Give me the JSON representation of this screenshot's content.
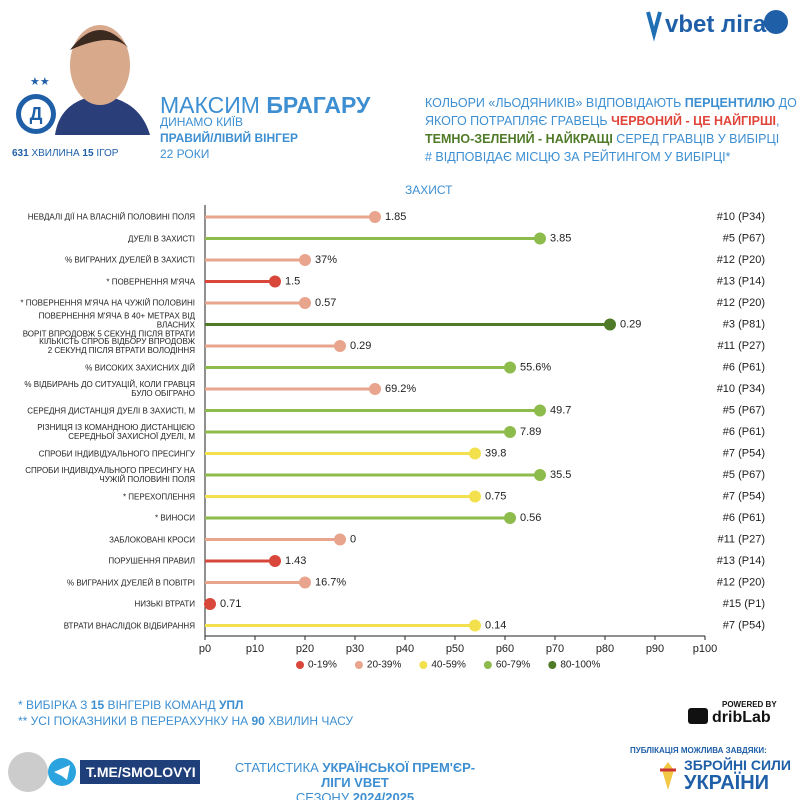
{
  "header": {
    "brand": "vbet ліга",
    "first_name": "МАКСИМ",
    "last_name": "БРАГАРУ",
    "club": "ДИНАМО КИЇВ",
    "position": "ПРАВИЙ/ЛІВИЙ ВІНГЕР",
    "age": "22 РОКИ",
    "minutes": [
      {
        "text": "631",
        "style": "b"
      },
      {
        "text": " ХВИЛИНА "
      },
      {
        "text": "15",
        "style": "b"
      },
      {
        "text": " ІГОР"
      }
    ],
    "note": [
      [
        {
          "text": "КОЛЬОРИ «ЛЬОДЯНИКІВ» ВІДПОВІДАЮТЬ "
        },
        {
          "text": "ПЕРЦЕНТИЛЮ",
          "style": "b"
        },
        {
          "text": " ДО"
        }
      ],
      [
        {
          "text": "ЯКОГО ПОТРАПЛЯЄ ГРАВЕЦЬ "
        },
        {
          "text": "ЧЕРВОНИЙ - ЦЕ НАЙГІРШІ",
          "style": "r"
        },
        {
          "text": ","
        }
      ],
      [
        {
          "text": "ТЕМНО-ЗЕЛЕНИЙ - НАЙКРАЩІ",
          "style": "g"
        },
        {
          "text": " СЕРЕД ГРАВЦІВ У ВИБІРЦІ"
        }
      ],
      [
        {
          "text": "# ВІДПОВІДАЄ МІСЦЮ ЗА РЕЙТИНГОМ У ВИБІРЦІ*"
        }
      ]
    ]
  },
  "chart_data": {
    "type": "lollipop",
    "title": "ЗАХИСТ",
    "categories": [
      "НЕВДАЛІ ДІЇ НА ВЛАСНІЙ ПОЛОВИНІ ПОЛЯ",
      "ДУЕЛІ В ЗАХИСТІ",
      "% ВИГРАНИХ ДУЕЛЕЙ В ЗАХИСТІ",
      "*  ПОВЕРНЕННЯ М'ЯЧА",
      "*  ПОВЕРНЕННЯ М'ЯЧА НА ЧУЖІЙ ПОЛОВИНІ",
      "ПОВЕРНЕННЯ М'ЯЧА В 40+ МЕТРАХ ВІД ВЛАСНИХ\nВОРІТ ВПРОДОВЖ 5 СЕКУНД ПІСЛЯ ВТРАТИ",
      "КІЛЬКІСТЬ СПРОБ ВІДБОРУ ВПРОДОВЖ\n2 СЕКУНД ПІСЛЯ ВТРАТИ ВОЛОДІННЯ",
      "% ВИСОКИХ ЗАХИСНИХ ДІЙ",
      "% ВІДБИРАНЬ ДО СИТУАЦІЙ, КОЛИ ГРАВЦЯ\nБУЛО ОБІГРАНО",
      "СЕРЕДНЯ ДИСТАНЦІЯ ДУЕЛІ В ЗАХИСТІ, М",
      "РІЗНИЦЯ ІЗ КОМАНДНОЮ ДИСТАНЦІЄЮ\nСЕРЕДНЬОЇ ЗАХИСНОЇ ДУЕЛІ, М",
      "СПРОБИ ІНДИВІДУАЛЬНОГО ПРЕСИНГУ",
      "СПРОБИ ІНДИВІДУАЛЬНОГО ПРЕСИНГУ НА\nЧУЖІЙ ПОЛОВИНІ ПОЛЯ",
      "*  ПЕРЕХОПЛЕННЯ",
      "*  ВИНОСИ",
      "ЗАБЛОКОВАНІ КРОСИ",
      "ПОРУШЕННЯ ПРАВИЛ",
      "% ВИГРАНИХ ДУЕЛЕЙ В ПОВІТРІ",
      "НИЗЬКІ ВТРАТИ",
      "ВТРАТИ ВНАСЛІДОК ВІДБИРАННЯ"
    ],
    "values": [
      34,
      67,
      20,
      14,
      20,
      81,
      27,
      61,
      34,
      67,
      61,
      54,
      67,
      54,
      61,
      27,
      14,
      20,
      1,
      54
    ],
    "stat_labels": [
      "1.85",
      "3.85",
      "37%",
      "1.5",
      "0.57",
      "0.29",
      "0.29",
      "55.6%",
      "69.2%",
      "49.7",
      "7.89",
      "39.8",
      "35.5",
      "0.75",
      "0.56",
      "0",
      "1.43",
      "16.7%",
      "0.71",
      "0.14"
    ],
    "rank_labels": [
      "#10 (P34)",
      "#5 (P67)",
      "#12 (P20)",
      "#13 (P14)",
      "#12 (P20)",
      "#3 (P81)",
      "#11 (P27)",
      "#6 (P61)",
      "#10 (P34)",
      "#5 (P67)",
      "#6 (P61)",
      "#7 (P54)",
      "#5 (P67)",
      "#7 (P54)",
      "#6 (P61)",
      "#11 (P27)",
      "#13 (P14)",
      "#12 (P20)",
      "#15 (P1)",
      "#7 (P54)"
    ],
    "colors": [
      "#e8a48c",
      "#8dbb4c",
      "#e8a48c",
      "#d9473b",
      "#e8a48c",
      "#4f7a28",
      "#e8a48c",
      "#8dbb4c",
      "#e8a48c",
      "#8dbb4c",
      "#8dbb4c",
      "#f2e14c",
      "#8dbb4c",
      "#f2e14c",
      "#8dbb4c",
      "#e8a48c",
      "#d9473b",
      "#e8a48c",
      "#d9473b",
      "#f2e14c"
    ],
    "xlim": [
      0,
      100
    ],
    "xticks": [
      {
        "value": 0,
        "label": "p0"
      },
      {
        "value": 10,
        "label": "p10"
      },
      {
        "value": 20,
        "label": "p20"
      },
      {
        "value": 30,
        "label": "p30"
      },
      {
        "value": 40,
        "label": "p40"
      },
      {
        "value": 50,
        "label": "p50"
      },
      {
        "value": 60,
        "label": "p60"
      },
      {
        "value": 70,
        "label": "p70"
      },
      {
        "value": 80,
        "label": "p80"
      },
      {
        "value": 90,
        "label": "p90"
      },
      {
        "value": 100,
        "label": "p100"
      }
    ],
    "legend": [
      {
        "name": "0-19%",
        "color": "#d9473b"
      },
      {
        "name": "20-39%",
        "color": "#e8a48c"
      },
      {
        "name": "40-59%",
        "color": "#f2e14c"
      },
      {
        "name": "60-79%",
        "color": "#8dbb4c"
      },
      {
        "name": "80-100%",
        "color": "#4f7a28"
      }
    ]
  },
  "footer": {
    "notes": [
      [
        {
          "text": "* ВИБІРКА З "
        },
        {
          "text": "15",
          "style": "b"
        },
        {
          "text": " ВІНГЕРІВ КОМАНД "
        },
        {
          "text": "УПЛ",
          "style": "b"
        }
      ],
      [
        {
          "text": "** УСІ ПОКАЗНИКИ В ПЕРЕРАХУНКУ НА "
        },
        {
          "text": "90",
          "style": "b"
        },
        {
          "text": " ХВИЛИН ЧАСУ"
        }
      ]
    ],
    "powered": "POWERED BY",
    "powered_brand": "dribLab",
    "telegram": "T.ME/SMOLOVYI",
    "stats": [
      [
        {
          "text": "СТАТИСТИКА "
        },
        {
          "text": "УКРАЇНСЬКОЇ ПРЕМ'ЄР-ЛІГИ VBET",
          "style": "b"
        }
      ],
      [
        {
          "text": "СЕЗОНУ "
        },
        {
          "text": "2024/2025",
          "style": "b"
        }
      ]
    ],
    "sponsor_note": "ПУБЛІКАЦІЯ МОЖЛИВА ЗАВДЯКИ:",
    "sponsor_1": "ЗБРОЙНІ СИЛИ",
    "sponsor_2": "УКРАЇНИ"
  }
}
